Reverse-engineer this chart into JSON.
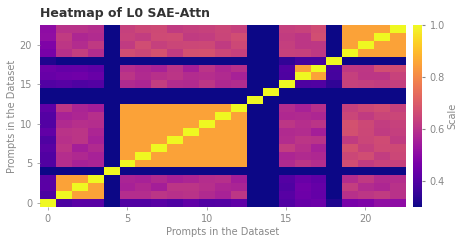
{
  "title": "Heatmap of L0 SAE-Attn",
  "xlabel": "Prompts in the Dataset",
  "ylabel": "Prompts in the Dataset",
  "colorbar_label": "Scale",
  "colorbar_ticks": [
    0.4,
    0.6,
    0.8,
    1.0
  ],
  "cmap": "plasma",
  "n": 23,
  "vmin": 0.3,
  "vmax": 1.0,
  "title_fontsize": 9,
  "axis_fontsize": 7,
  "colorbar_fontsize": 7,
  "fig_width": 4.66,
  "fig_height": 2.44,
  "dpi": 100,
  "background_color": "#ffffff",
  "row_base": [
    0.55,
    0.45,
    0.62,
    0.5,
    0.34,
    0.65,
    0.6,
    0.68,
    0.55,
    0.62,
    0.58,
    0.65,
    0.6,
    0.34,
    0.58,
    0.52,
    0.6,
    0.65,
    0.34,
    0.6,
    0.68,
    0.55,
    0.7
  ],
  "col_base": [
    0.55,
    0.45,
    0.62,
    0.5,
    0.34,
    0.65,
    0.6,
    0.68,
    0.55,
    0.62,
    0.58,
    0.65,
    0.6,
    0.34,
    0.58,
    0.52,
    0.6,
    0.65,
    0.34,
    0.6,
    0.68,
    0.55,
    0.7
  ]
}
